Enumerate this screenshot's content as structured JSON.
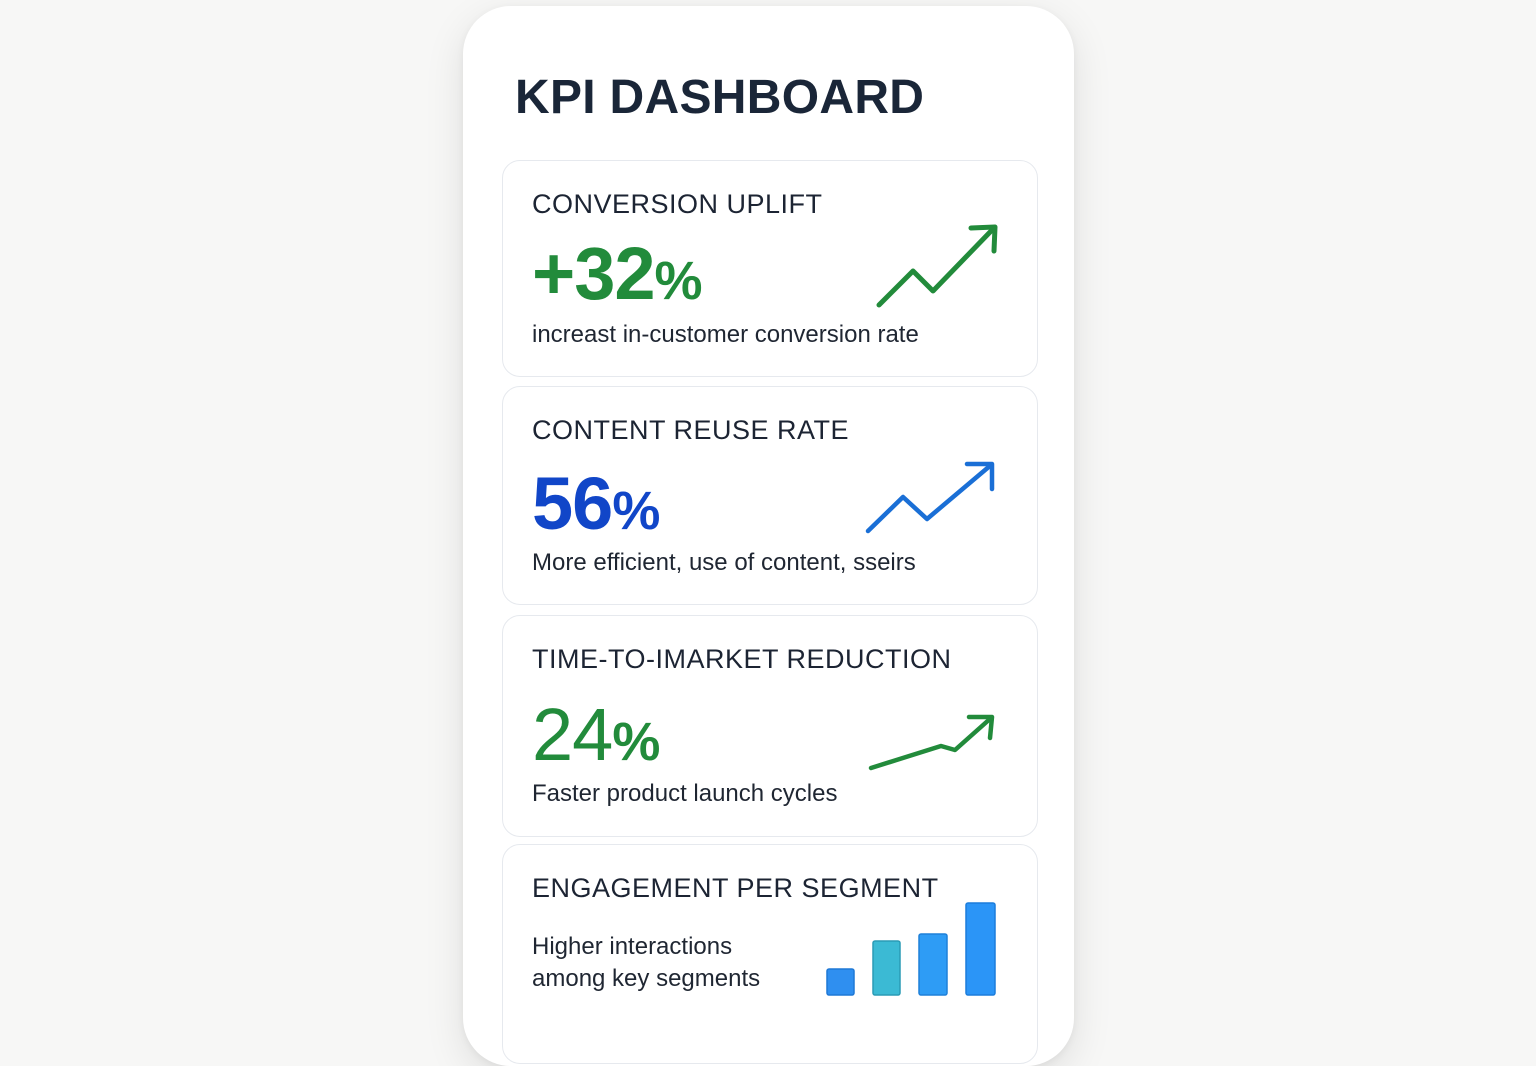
{
  "page": {
    "title": "KPI DASHBOARD"
  },
  "cards": [
    {
      "label": "CONVERSION UPLIFT",
      "value": "+32",
      "unit": "%",
      "description": "increast in-customer conversion rate",
      "color": "#228b3b",
      "icon": "trend-up-arrow-icon"
    },
    {
      "label": "CONTENT REUSE RATE",
      "value": "56",
      "unit": "%",
      "description": "More efficient, use of content, sseirs",
      "color": "#1146c8",
      "icon": "trend-up-arrow-icon"
    },
    {
      "label": "TIME-TO-IMARKET REDUCTION",
      "value": "24",
      "unit": "%",
      "description": "Faster product launch cycles",
      "color": "#228b3b",
      "icon": "trend-up-arrow-icon"
    },
    {
      "label": "ENGAGEMENT PER SEGMENT",
      "description_lines": [
        "Higher interactions",
        "among key segments"
      ],
      "icon": "bar-chart-icon",
      "bar_colors": [
        "#2f8ff0",
        "#3bbad4",
        "#2e9cf5",
        "#2b95f7"
      ]
    }
  ]
}
